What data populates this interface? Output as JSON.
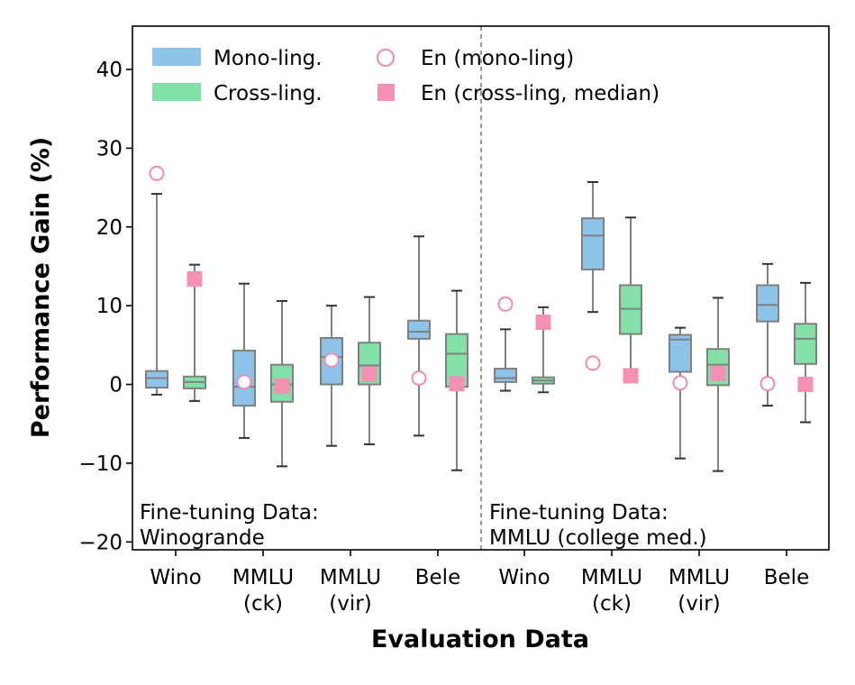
{
  "chart_data": {
    "type": "box",
    "title": "",
    "xlabel": "Evaluation Data",
    "ylabel": "Performance Gain (%)",
    "ylim": [
      -21,
      45.5
    ],
    "yticks": [
      -20,
      -10,
      0,
      10,
      20,
      30,
      40
    ],
    "ytick_labels": [
      "−20",
      "−10",
      "0",
      "10",
      "20",
      "30",
      "40"
    ],
    "grid": false,
    "legend_position": "top-left",
    "legend": {
      "mono": "Mono-ling.",
      "cross": "Cross-ling.",
      "en_mono": "En (mono-ling)",
      "en_cross": "En (cross-ling, median)"
    },
    "colors": {
      "mono": "#8ec4ea",
      "cross": "#83e0a7",
      "en_mono": "#ec8cb1",
      "en_cross": "#f390b4",
      "box_edge": "#808080",
      "divider": "#808080"
    },
    "panels": [
      {
        "label_line1": "Fine-tuning Data:",
        "label_line2": "Winogrande",
        "categories": [
          {
            "line1": "Wino",
            "line2": ""
          },
          {
            "line1": "MMLU",
            "line2": "(ck)"
          },
          {
            "line1": "MMLU",
            "line2": "(vir)"
          },
          {
            "line1": "Bele",
            "line2": ""
          }
        ],
        "mono": [
          {
            "whislo": -1.3,
            "q1": -0.4,
            "med": 0.8,
            "q3": 1.7,
            "whishi": 24.2
          },
          {
            "whislo": -6.8,
            "q1": -2.7,
            "med": -0.3,
            "q3": 4.3,
            "whishi": 12.8
          },
          {
            "whislo": -7.8,
            "q1": 0.0,
            "med": 3.5,
            "q3": 5.9,
            "whishi": 10.0
          },
          {
            "whislo": -6.5,
            "q1": 5.8,
            "med": 6.7,
            "q3": 8.1,
            "whishi": 18.8
          }
        ],
        "cross": [
          {
            "whislo": -2.1,
            "q1": -0.5,
            "med": 0.3,
            "q3": 1.0,
            "whishi": 15.2
          },
          {
            "whislo": -10.4,
            "q1": -2.2,
            "med": 0.0,
            "q3": 2.5,
            "whishi": 10.6
          },
          {
            "whislo": -7.6,
            "q1": 0.0,
            "med": 2.4,
            "q3": 5.3,
            "whishi": 11.1
          },
          {
            "whislo": -10.9,
            "q1": -0.3,
            "med": 3.9,
            "q3": 6.4,
            "whishi": 11.9
          }
        ],
        "en_mono": [
          26.8,
          0.3,
          3.1,
          0.8
        ],
        "en_cross": [
          13.4,
          -0.2,
          1.3,
          0.1
        ]
      },
      {
        "label_line1": "Fine-tuning Data:",
        "label_line2": "MMLU (college med.)",
        "categories": [
          {
            "line1": "Wino",
            "line2": ""
          },
          {
            "line1": "MMLU",
            "line2": "(ck)"
          },
          {
            "line1": "MMLU",
            "line2": "(vir)"
          },
          {
            "line1": "Bele",
            "line2": ""
          }
        ],
        "mono": [
          {
            "whislo": -0.8,
            "q1": 0.3,
            "med": 0.8,
            "q3": 2.0,
            "whishi": 7.0
          },
          {
            "whislo": 9.2,
            "q1": 14.6,
            "med": 18.9,
            "q3": 21.1,
            "whishi": 25.7
          },
          {
            "whislo": -9.4,
            "q1": 1.6,
            "med": 5.7,
            "q3": 6.3,
            "whishi": 7.2
          },
          {
            "whislo": -2.7,
            "q1": 8.0,
            "med": 10.1,
            "q3": 12.6,
            "whishi": 15.3
          }
        ],
        "cross": [
          {
            "whislo": -1.0,
            "q1": 0.1,
            "med": 0.5,
            "q3": 0.9,
            "whishi": 9.8
          },
          {
            "whislo": 1.5,
            "q1": 6.4,
            "med": 9.6,
            "q3": 12.6,
            "whishi": 21.2
          },
          {
            "whislo": -11.0,
            "q1": -0.1,
            "med": 2.5,
            "q3": 4.5,
            "whishi": 11.0
          },
          {
            "whislo": -4.8,
            "q1": 2.6,
            "med": 5.8,
            "q3": 7.7,
            "whishi": 12.9
          }
        ],
        "en_mono": [
          10.2,
          2.7,
          0.2,
          0.1
        ],
        "en_cross": [
          7.9,
          1.1,
          1.4,
          0.0
        ]
      }
    ]
  }
}
